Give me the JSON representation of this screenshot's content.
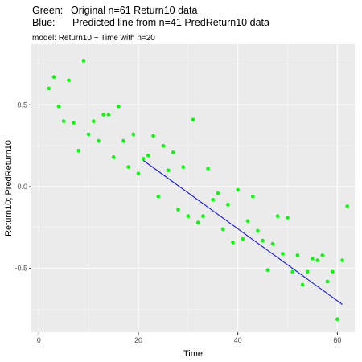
{
  "chart_data": {
    "type": "scatter",
    "title": {
      "line1_label": "Green:",
      "line1_text": "Original n=61 Return10 data",
      "line2_label": "Blue:",
      "line2_text": "Predicted line from n=41 PredReturn10 data"
    },
    "subtitle": "model: Return10 ~ Time with n=20",
    "xlabel": "Time",
    "ylabel": "Return10; PredReturn10",
    "xlim": [
      -1.5,
      63.5
    ],
    "ylim": [
      -0.89,
      0.87
    ],
    "x_ticks": [
      0,
      20,
      40,
      60
    ],
    "y_ticks": [
      -0.5,
      0.0,
      0.5
    ],
    "y_tick_labels": [
      "-0.5",
      "0.0",
      "0.5"
    ],
    "grid": true,
    "series": [
      {
        "kind": "points",
        "color": "#00ff00",
        "x": [
          2,
          3,
          4,
          5,
          6,
          7,
          8,
          9,
          10,
          11,
          12,
          13,
          14,
          15,
          16,
          17,
          18,
          19,
          20,
          21,
          22,
          23,
          24,
          25,
          26,
          27,
          28,
          29,
          30,
          31,
          32,
          33,
          34,
          35,
          36,
          37,
          38,
          39,
          40,
          41,
          42,
          43,
          44,
          45,
          46,
          47,
          48,
          49,
          50,
          51,
          52,
          53,
          54,
          55,
          56,
          57,
          58,
          59,
          60,
          61,
          62
        ],
        "y": [
          0.6,
          0.67,
          0.49,
          0.4,
          0.65,
          0.39,
          0.22,
          0.77,
          0.32,
          0.4,
          0.28,
          0.44,
          0.44,
          0.18,
          0.49,
          0.28,
          0.12,
          0.32,
          0.08,
          0.17,
          0.19,
          0.31,
          -0.06,
          0.25,
          0.1,
          0.21,
          -0.14,
          0.12,
          -0.18,
          0.41,
          -0.22,
          -0.18,
          0.11,
          -0.08,
          -0.04,
          -0.26,
          -0.11,
          -0.34,
          -0.02,
          -0.32,
          -0.21,
          -0.06,
          -0.27,
          -0.33,
          -0.51,
          -0.35,
          -0.18,
          -0.41,
          -0.19,
          -0.52,
          -0.42,
          -0.6,
          -0.52,
          -0.44,
          -0.45,
          -0.42,
          -0.58,
          -0.52,
          -0.81,
          -0.45,
          -0.12
        ]
      },
      {
        "kind": "line",
        "color": "#0000ff",
        "x": [
          21,
          61
        ],
        "y": [
          0.16,
          -0.72
        ]
      }
    ]
  }
}
